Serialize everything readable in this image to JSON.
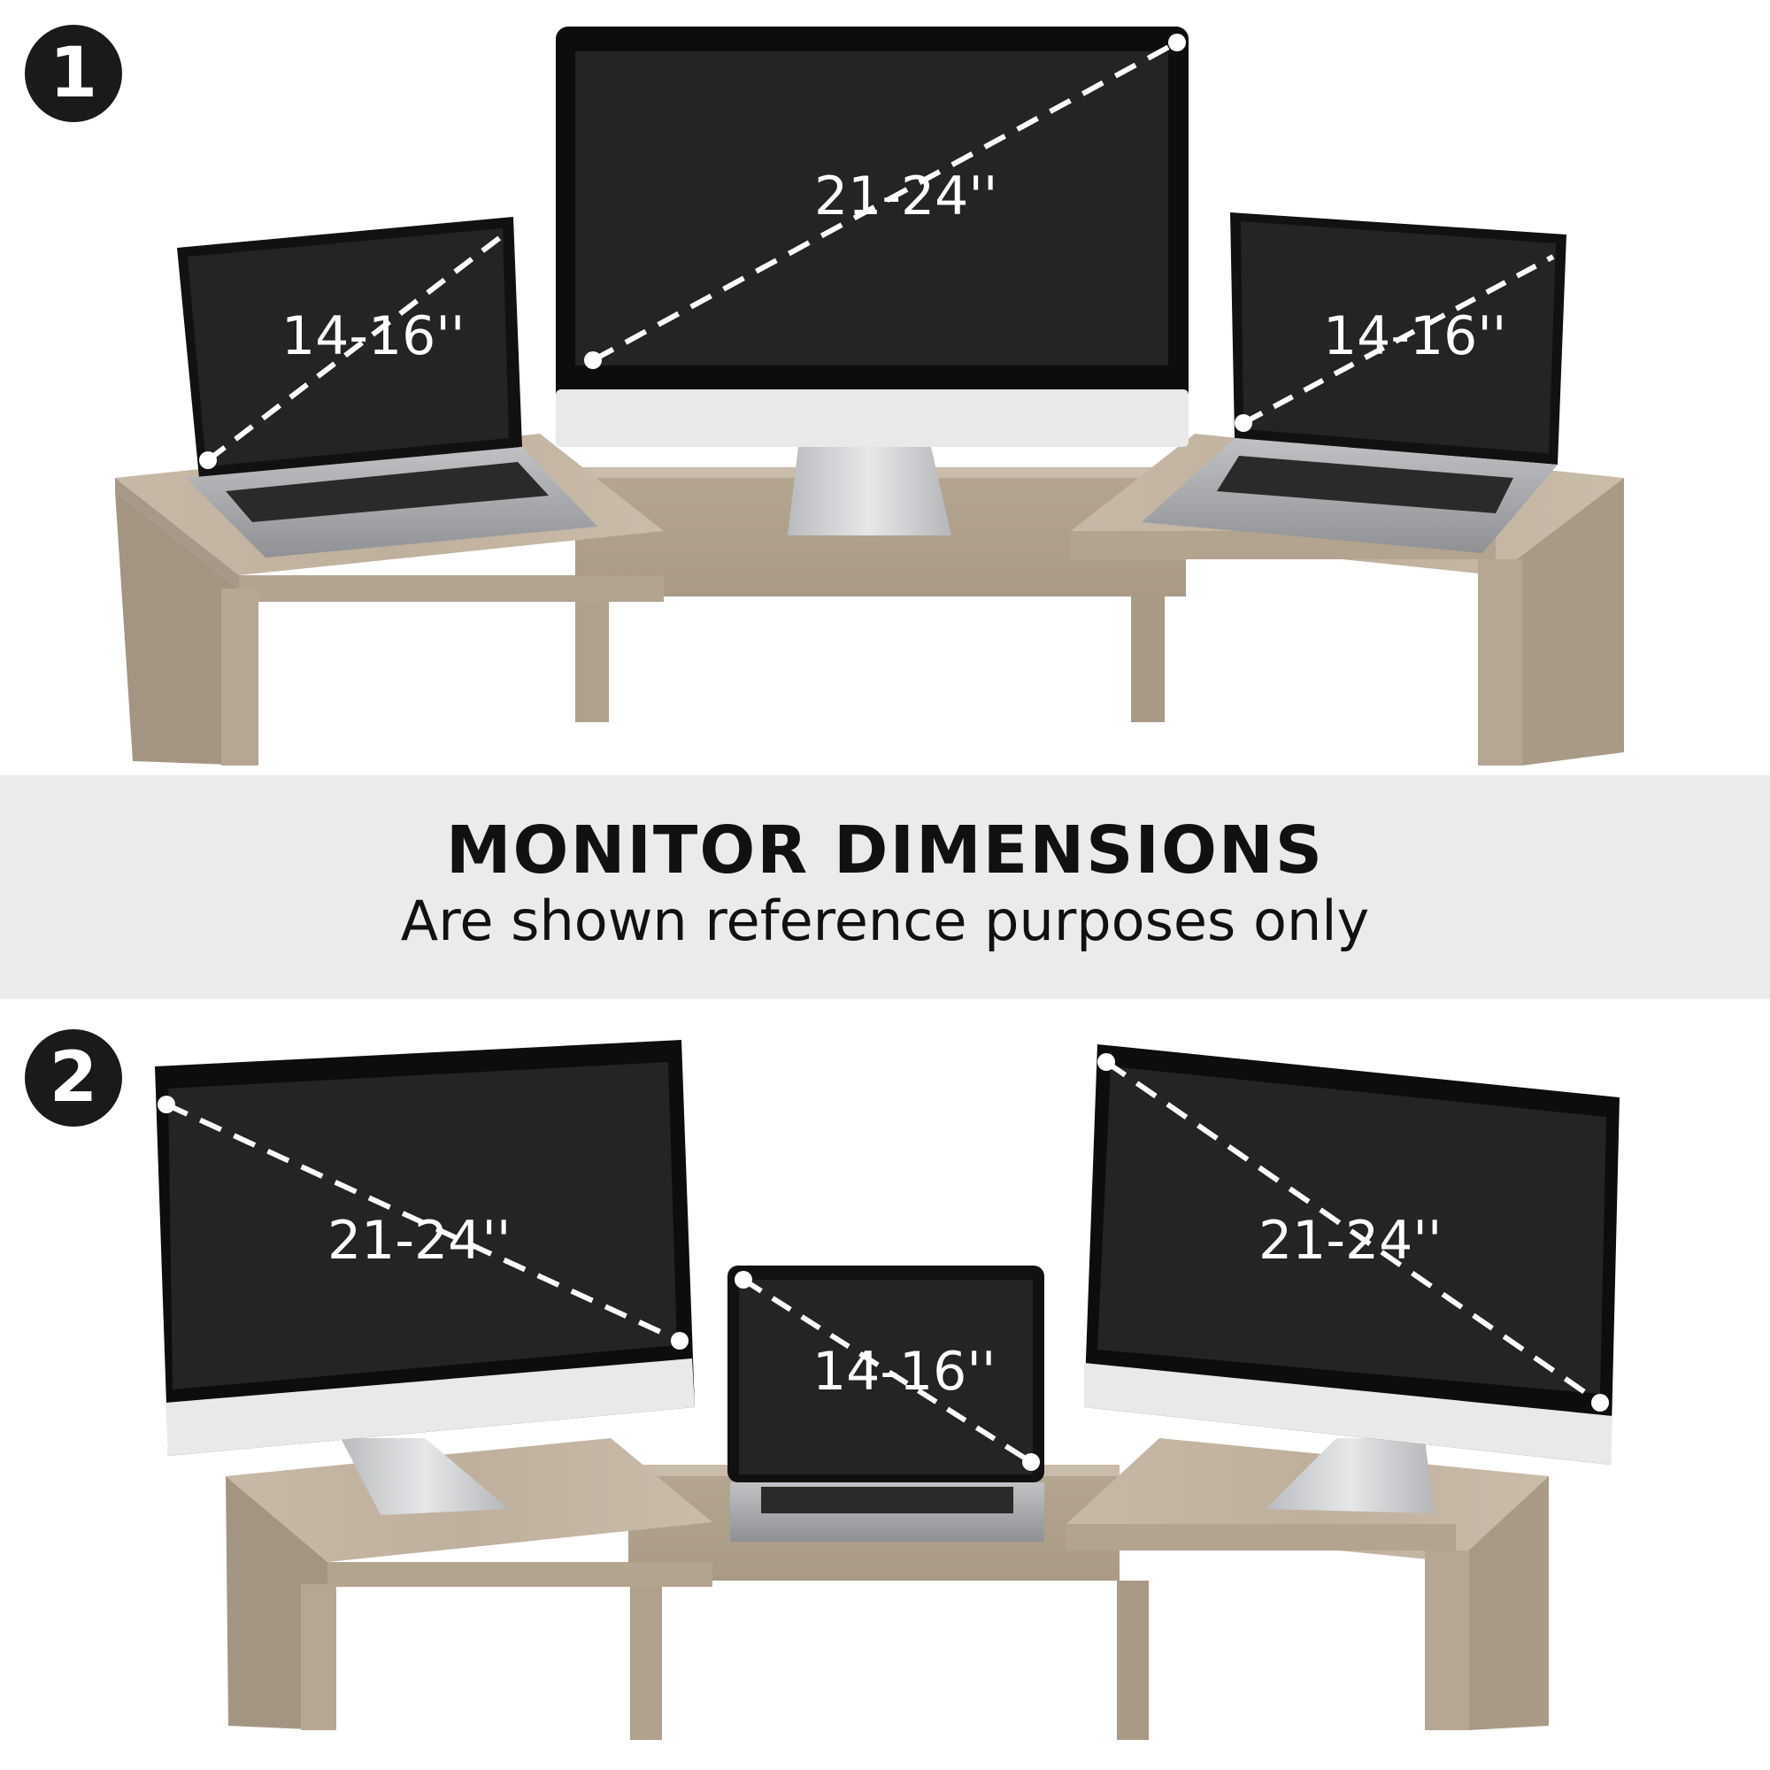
{
  "steps": [
    "1",
    "2"
  ],
  "banner": {
    "title": "MONITOR DIMENSIONS",
    "subtitle": "Are shown reference purposes only"
  },
  "config1": {
    "left_laptop": "14-16''",
    "center_monitor": "21-24''",
    "right_laptop": "14-16''"
  },
  "config2": {
    "left_monitor": "21-24''",
    "center_laptop": "14-16''",
    "right_monitor": "21-24''"
  },
  "colors": {
    "wood": "#b9aa98",
    "wood_light": "#cbbdab",
    "wood_dark": "#9d8f7e",
    "screen": "#242424",
    "bezel": "#0d0d0d",
    "silver": "#c9cbce",
    "banner": "#ebebeb"
  }
}
